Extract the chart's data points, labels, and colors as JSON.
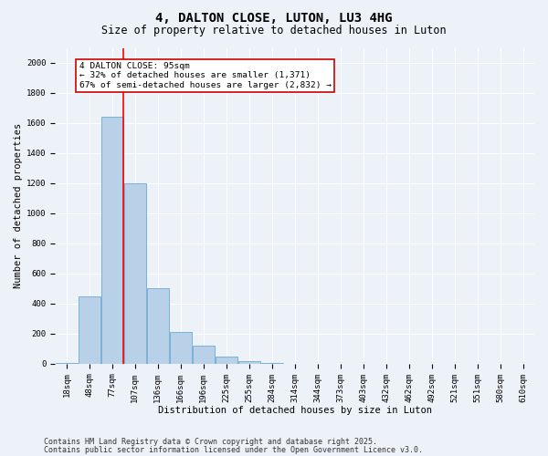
{
  "title": "4, DALTON CLOSE, LUTON, LU3 4HG",
  "subtitle": "Size of property relative to detached houses in Luton",
  "xlabel": "Distribution of detached houses by size in Luton",
  "ylabel": "Number of detached properties",
  "bin_labels": [
    "18sqm",
    "48sqm",
    "77sqm",
    "107sqm",
    "136sqm",
    "166sqm",
    "196sqm",
    "225sqm",
    "255sqm",
    "284sqm",
    "314sqm",
    "344sqm",
    "373sqm",
    "403sqm",
    "432sqm",
    "462sqm",
    "492sqm",
    "521sqm",
    "551sqm",
    "580sqm",
    "610sqm"
  ],
  "bar_values": [
    5,
    450,
    1640,
    1200,
    500,
    210,
    120,
    50,
    20,
    5,
    2,
    0,
    0,
    0,
    0,
    0,
    0,
    0,
    0,
    0,
    0
  ],
  "bar_color": "#b8d0e8",
  "bar_edge_color": "#6aaad4",
  "red_line_bin": 2,
  "annotation_text": "4 DALTON CLOSE: 95sqm\n← 32% of detached houses are smaller (1,371)\n67% of semi-detached houses are larger (2,832) →",
  "annotation_box_color": "#ffffff",
  "annotation_box_edge": "#cc0000",
  "ylim": [
    0,
    2100
  ],
  "yticks": [
    0,
    200,
    400,
    600,
    800,
    1000,
    1200,
    1400,
    1600,
    1800,
    2000
  ],
  "footer_line1": "Contains HM Land Registry data © Crown copyright and database right 2025.",
  "footer_line2": "Contains public sector information licensed under the Open Government Licence v3.0.",
  "background_color": "#edf1f8",
  "grid_color": "#ffffff",
  "title_fontsize": 10,
  "subtitle_fontsize": 8.5,
  "axis_label_fontsize": 7.5,
  "tick_fontsize": 6.5,
  "annotation_fontsize": 6.8,
  "footer_fontsize": 6.0
}
